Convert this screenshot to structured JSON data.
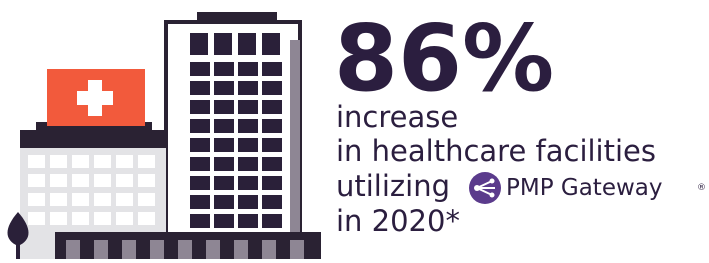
{
  "headline": "86%",
  "lines": [
    "increase",
    "in healthcare facilities",
    "utilizing",
    "in 2020*"
  ],
  "brand": {
    "name": "PMP Gateway",
    "mark": "®"
  }
}
